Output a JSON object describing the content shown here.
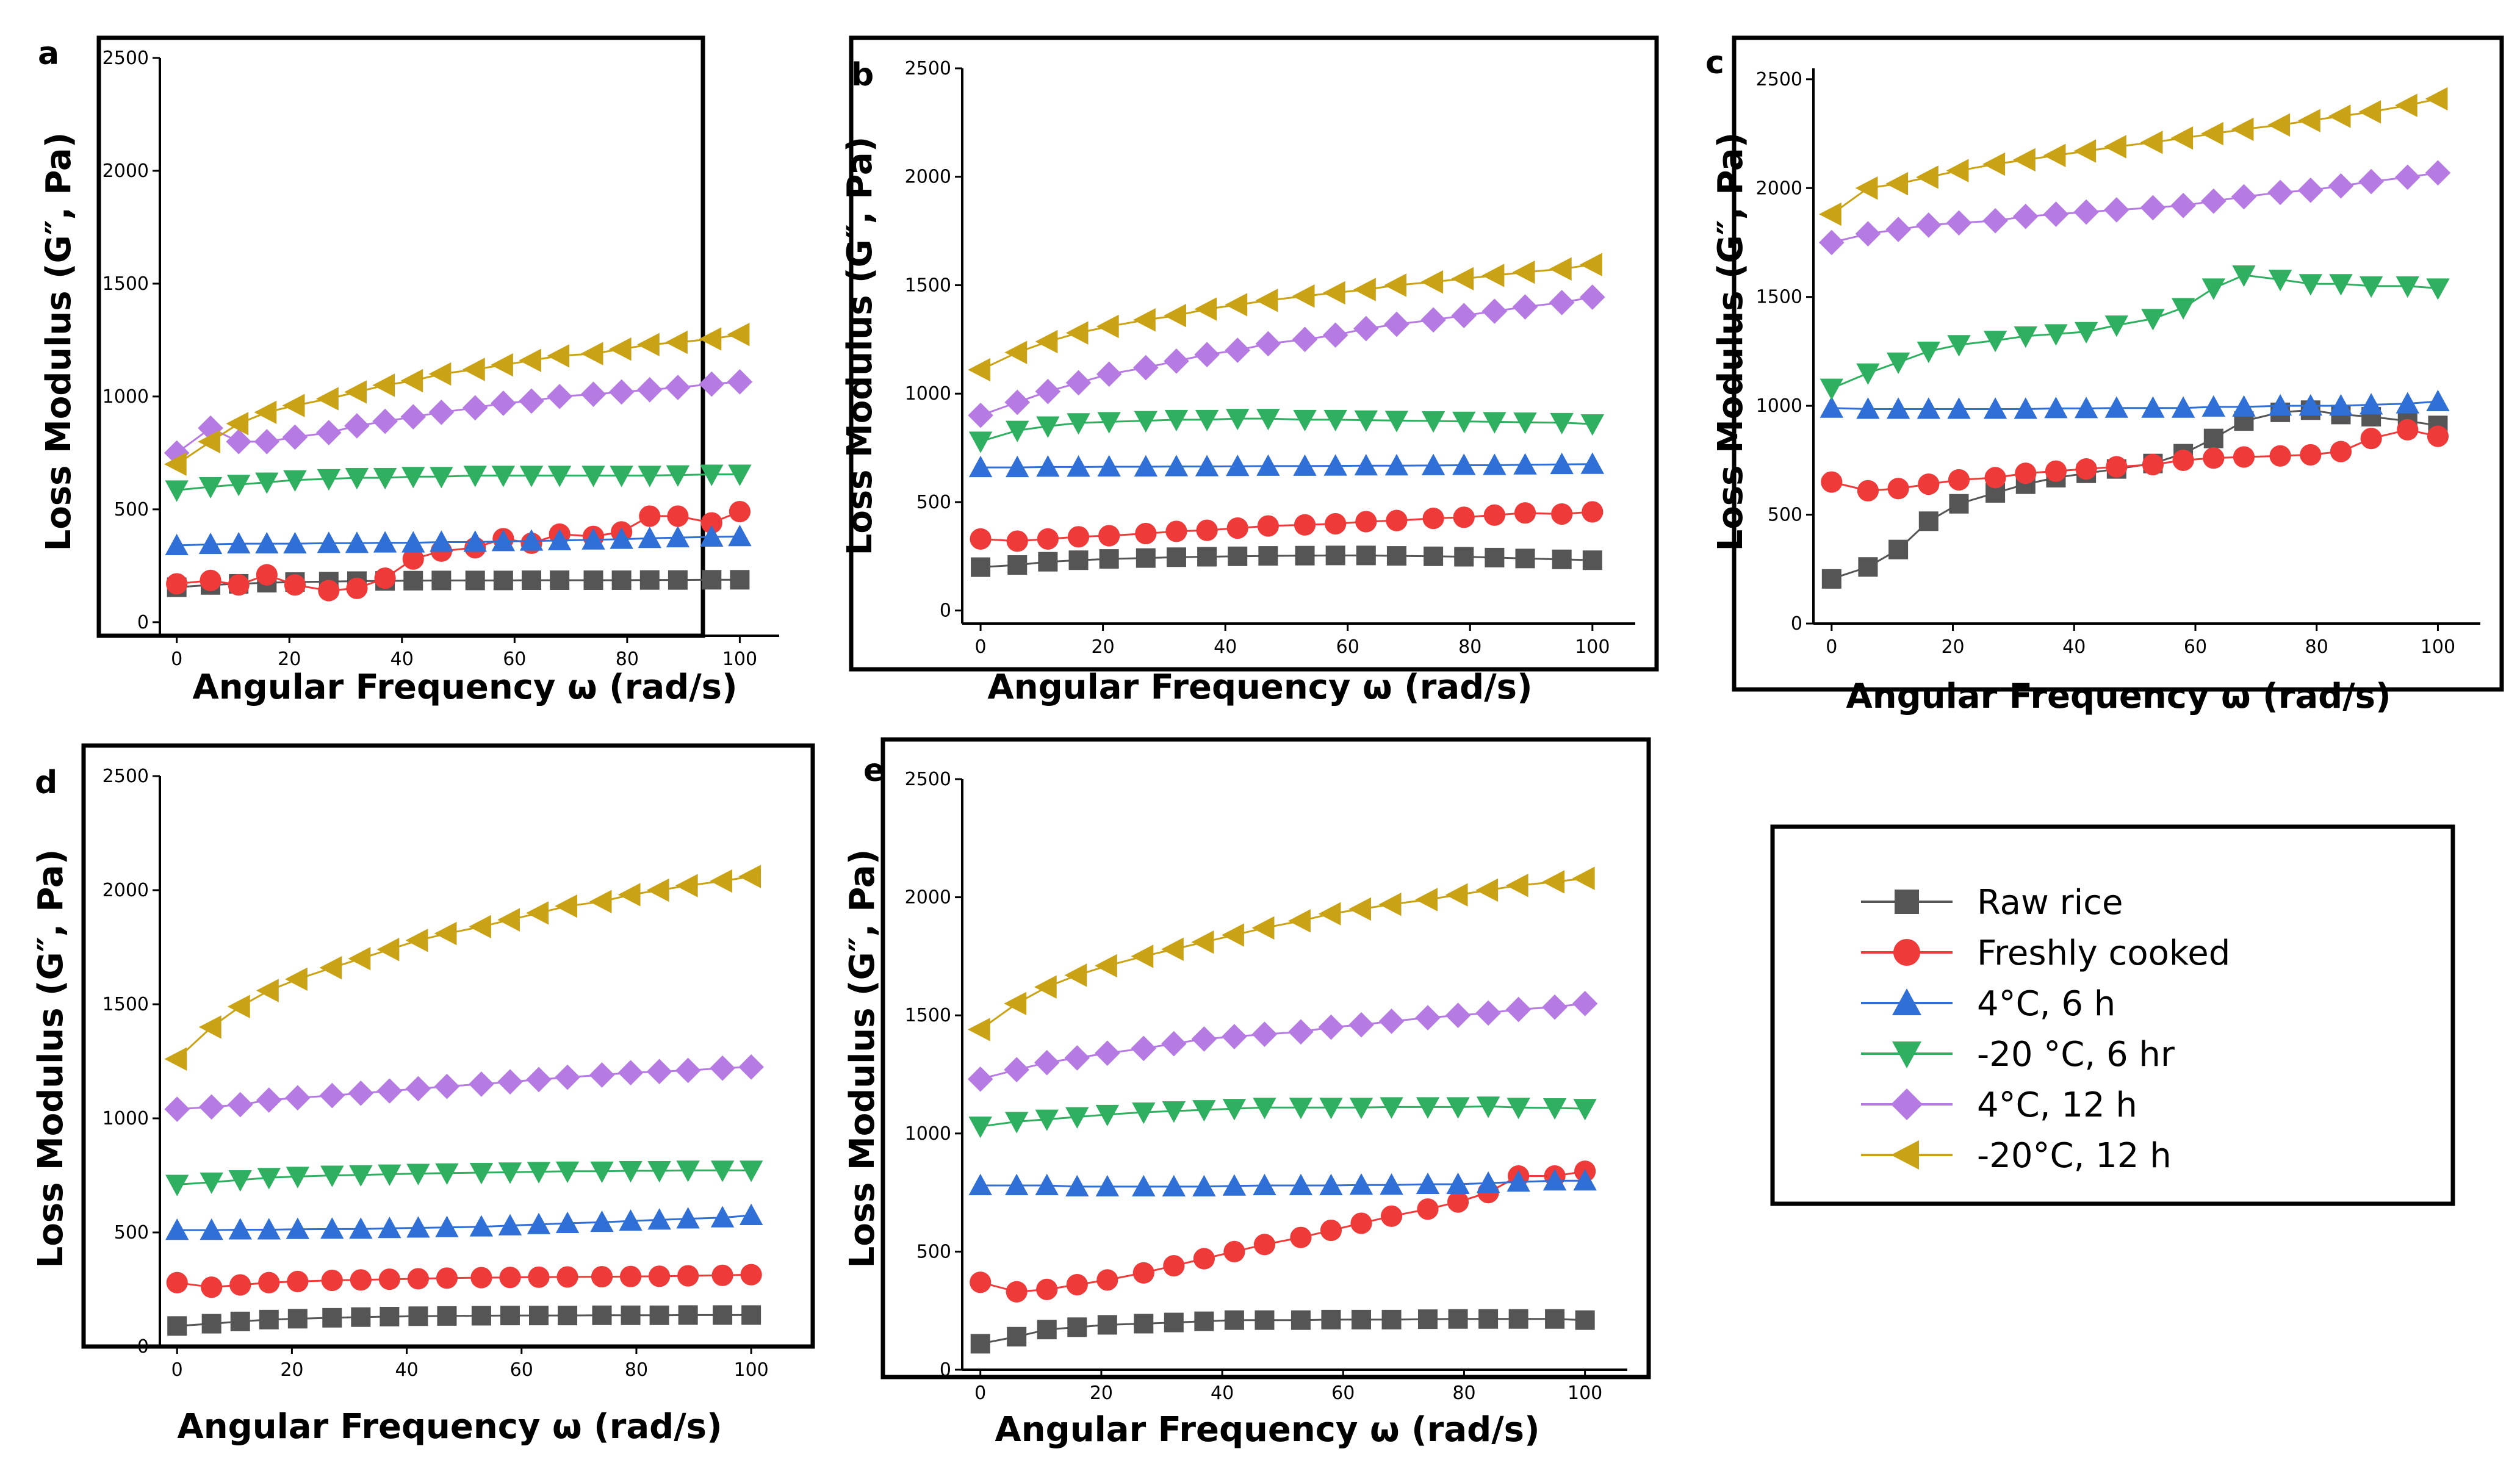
{
  "figure": {
    "legend_entries": [
      {
        "label": "Raw rice",
        "color": "#555555",
        "marker": "square"
      },
      {
        "label": "Freshly cooked",
        "color": "#ef3a3a",
        "marker": "circle"
      },
      {
        "label": "4°C, 6 h",
        "color": "#2f6fd6",
        "marker": "triangle-up"
      },
      {
        "label": "-20 °C, 6 hr",
        "color": "#2fb061",
        "marker": "triangle-down"
      },
      {
        "label": "4°C, 12 h",
        "color": "#b57be3",
        "marker": "diamond"
      },
      {
        "label": "-20°C, 12 h",
        "color": "#c9a215",
        "marker": "triangle-left"
      }
    ]
  },
  "chart_data": [
    {
      "panel": "a",
      "type": "line",
      "xlabel": "Angular Frequency ω (rad/s)",
      "ylabel": "Loss Modulus (G″, Pa)",
      "xlim": [
        -3,
        107
      ],
      "ylim": [
        -60,
        2500
      ],
      "xticks": [
        0,
        20,
        40,
        60,
        80,
        100
      ],
      "yticks": [
        0,
        500,
        1000,
        1500,
        2000,
        2500
      ],
      "x": [
        0,
        6,
        11,
        16,
        21,
        27,
        32,
        37,
        42,
        47,
        53,
        58,
        63,
        68,
        74,
        79,
        84,
        89,
        95,
        100
      ],
      "series": [
        {
          "name": "Raw rice",
          "values": [
            155,
            165,
            170,
            175,
            178,
            180,
            182,
            183,
            184,
            185,
            185,
            185,
            186,
            186,
            186,
            186,
            187,
            187,
            188,
            188
          ]
        },
        {
          "name": "Freshly cooked",
          "values": [
            170,
            185,
            165,
            210,
            165,
            140,
            150,
            195,
            280,
            315,
            330,
            370,
            350,
            390,
            380,
            400,
            470,
            470,
            440,
            490
          ]
        },
        {
          "name": "4°C, 6 h",
          "values": [
            340,
            345,
            348,
            348,
            348,
            350,
            350,
            352,
            352,
            355,
            355,
            358,
            360,
            362,
            365,
            368,
            372,
            375,
            378,
            380
          ]
        },
        {
          "name": "-20 °C, 6 hr",
          "values": [
            585,
            600,
            610,
            620,
            630,
            635,
            640,
            640,
            645,
            645,
            650,
            650,
            650,
            650,
            650,
            650,
            650,
            652,
            655,
            655
          ]
        },
        {
          "name": "4°C, 12 h",
          "values": [
            750,
            860,
            800,
            800,
            820,
            840,
            870,
            890,
            910,
            930,
            950,
            970,
            980,
            1000,
            1010,
            1020,
            1030,
            1040,
            1055,
            1065
          ]
        },
        {
          "name": "-20°C, 12 h",
          "values": [
            700,
            800,
            880,
            930,
            960,
            990,
            1020,
            1050,
            1070,
            1100,
            1120,
            1140,
            1160,
            1180,
            1190,
            1210,
            1230,
            1240,
            1255,
            1275
          ]
        }
      ]
    },
    {
      "panel": "b",
      "type": "line",
      "xlabel": "Angular Frequency ω (rad/s)",
      "ylabel": "Loss Modulus (G″, Pa)",
      "xlim": [
        -3,
        107
      ],
      "ylim": [
        -60,
        2500
      ],
      "xticks": [
        0,
        20,
        40,
        60,
        80,
        100
      ],
      "yticks": [
        0,
        500,
        1000,
        1500,
        2000,
        2500
      ],
      "x": [
        0,
        6,
        11,
        16,
        21,
        27,
        32,
        37,
        42,
        47,
        53,
        58,
        63,
        68,
        74,
        79,
        84,
        89,
        95,
        100
      ],
      "series": [
        {
          "name": "Raw rice",
          "values": [
            200,
            210,
            225,
            232,
            238,
            242,
            246,
            248,
            250,
            252,
            253,
            254,
            254,
            252,
            250,
            248,
            244,
            240,
            236,
            232
          ]
        },
        {
          "name": "Freshly cooked",
          "values": [
            330,
            320,
            330,
            340,
            345,
            355,
            365,
            370,
            380,
            390,
            395,
            400,
            410,
            415,
            425,
            430,
            440,
            450,
            445,
            455
          ]
        },
        {
          "name": "4°C, 6 h",
          "values": [
            660,
            660,
            662,
            662,
            663,
            663,
            664,
            664,
            665,
            666,
            666,
            667,
            668,
            668,
            669,
            670,
            670,
            672,
            674,
            675
          ]
        },
        {
          "name": "-20 °C, 6 hr",
          "values": [
            780,
            830,
            850,
            865,
            870,
            875,
            880,
            880,
            885,
            885,
            880,
            880,
            878,
            876,
            874,
            872,
            870,
            868,
            866,
            860
          ]
        },
        {
          "name": "4°C, 12 h",
          "values": [
            900,
            960,
            1010,
            1050,
            1090,
            1120,
            1150,
            1180,
            1200,
            1230,
            1250,
            1270,
            1300,
            1320,
            1340,
            1360,
            1380,
            1400,
            1420,
            1445
          ]
        },
        {
          "name": "-20°C, 12 h",
          "values": [
            1110,
            1190,
            1240,
            1280,
            1310,
            1340,
            1360,
            1390,
            1410,
            1430,
            1450,
            1465,
            1480,
            1500,
            1515,
            1530,
            1545,
            1560,
            1575,
            1595
          ]
        }
      ]
    },
    {
      "panel": "c",
      "type": "line",
      "xlabel": "Angular Frequency ω (rad/s)",
      "ylabel": "Loss Modulus (G″, Pa)",
      "xlim": [
        -3,
        107
      ],
      "ylim": [
        0,
        2550
      ],
      "xticks": [
        0,
        20,
        40,
        60,
        80,
        100
      ],
      "yticks": [
        0,
        500,
        1000,
        1500,
        2000,
        2500
      ],
      "x": [
        0,
        6,
        11,
        16,
        21,
        27,
        32,
        37,
        42,
        47,
        53,
        58,
        63,
        68,
        74,
        79,
        84,
        89,
        95,
        100
      ],
      "series": [
        {
          "name": "Raw rice",
          "values": [
            205,
            260,
            340,
            470,
            550,
            600,
            640,
            670,
            690,
            710,
            735,
            780,
            850,
            930,
            970,
            980,
            960,
            950,
            930,
            910
          ]
        },
        {
          "name": "Freshly cooked",
          "values": [
            650,
            610,
            620,
            640,
            660,
            670,
            690,
            700,
            710,
            720,
            730,
            750,
            760,
            765,
            770,
            775,
            790,
            850,
            890,
            860
          ]
        },
        {
          "name": "4°C, 6 h",
          "values": [
            990,
            985,
            985,
            985,
            985,
            985,
            985,
            988,
            988,
            990,
            990,
            990,
            995,
            995,
            1000,
            1000,
            1000,
            1005,
            1010,
            1020
          ]
        },
        {
          "name": "-20 °C, 6 hr",
          "values": [
            1080,
            1150,
            1200,
            1250,
            1280,
            1300,
            1320,
            1330,
            1340,
            1370,
            1400,
            1450,
            1540,
            1600,
            1580,
            1560,
            1560,
            1550,
            1550,
            1540
          ]
        },
        {
          "name": "4°C, 12 h",
          "values": [
            1750,
            1790,
            1810,
            1830,
            1840,
            1850,
            1870,
            1880,
            1890,
            1900,
            1910,
            1920,
            1940,
            1960,
            1980,
            1990,
            2010,
            2030,
            2050,
            2070
          ]
        },
        {
          "name": "-20°C, 12 h",
          "values": [
            1880,
            2000,
            2020,
            2050,
            2080,
            2110,
            2130,
            2150,
            2170,
            2190,
            2210,
            2230,
            2250,
            2270,
            2290,
            2310,
            2330,
            2350,
            2380,
            2410
          ]
        }
      ]
    },
    {
      "panel": "d",
      "type": "line",
      "xlabel": "Angular Frequency ω (rad/s)",
      "ylabel": "Loss Modulus (G″, Pa)",
      "xlim": [
        -3,
        107
      ],
      "ylim": [
        0,
        2500
      ],
      "xticks": [
        0,
        20,
        40,
        60,
        80,
        100
      ],
      "yticks": [
        0,
        500,
        1000,
        1500,
        2000,
        2500
      ],
      "x": [
        0,
        6,
        11,
        16,
        21,
        27,
        32,
        37,
        42,
        47,
        53,
        58,
        63,
        68,
        74,
        79,
        84,
        89,
        95,
        100
      ],
      "series": [
        {
          "name": "Raw rice",
          "values": [
            90,
            100,
            110,
            118,
            122,
            126,
            129,
            131,
            133,
            134,
            135,
            136,
            136,
            136,
            137,
            137,
            137,
            138,
            138,
            138
          ]
        },
        {
          "name": "Freshly cooked",
          "values": [
            280,
            260,
            270,
            280,
            285,
            290,
            292,
            295,
            297,
            300,
            302,
            303,
            304,
            305,
            306,
            307,
            308,
            310,
            312,
            315
          ]
        },
        {
          "name": "4°C, 6 h",
          "values": [
            510,
            510,
            512,
            512,
            514,
            515,
            515,
            518,
            520,
            522,
            525,
            530,
            535,
            540,
            545,
            550,
            555,
            560,
            565,
            575
          ]
        },
        {
          "name": "-20 °C, 6 hr",
          "values": [
            710,
            720,
            730,
            740,
            745,
            750,
            752,
            755,
            758,
            760,
            762,
            764,
            766,
            768,
            768,
            770,
            770,
            772,
            772,
            772
          ]
        },
        {
          "name": "4°C, 12 h",
          "values": [
            1040,
            1050,
            1060,
            1080,
            1090,
            1100,
            1110,
            1120,
            1130,
            1140,
            1150,
            1160,
            1170,
            1180,
            1190,
            1200,
            1205,
            1210,
            1220,
            1225
          ]
        },
        {
          "name": "-20°C, 12 h",
          "values": [
            1260,
            1400,
            1490,
            1560,
            1610,
            1660,
            1700,
            1740,
            1780,
            1810,
            1840,
            1870,
            1900,
            1930,
            1950,
            1980,
            2000,
            2020,
            2040,
            2060
          ]
        }
      ]
    },
    {
      "panel": "e",
      "type": "line",
      "xlabel": "Angular Frequency ω (rad/s)",
      "ylabel": "Loss Modulus (G″, Pa)",
      "xlim": [
        -3,
        107
      ],
      "ylim": [
        0,
        2500
      ],
      "xticks": [
        0,
        20,
        40,
        60,
        80,
        100
      ],
      "yticks": [
        0,
        500,
        1000,
        1500,
        2000,
        2500
      ],
      "x": [
        0,
        6,
        11,
        16,
        21,
        27,
        32,
        37,
        42,
        47,
        53,
        58,
        63,
        68,
        74,
        79,
        84,
        89,
        95,
        100
      ],
      "series": [
        {
          "name": "Raw rice",
          "values": [
            110,
            140,
            170,
            180,
            190,
            195,
            200,
            205,
            210,
            210,
            210,
            212,
            212,
            212,
            214,
            215,
            215,
            215,
            215,
            210
          ]
        },
        {
          "name": "Freshly cooked",
          "values": [
            370,
            330,
            340,
            360,
            380,
            410,
            440,
            470,
            500,
            530,
            560,
            590,
            620,
            650,
            680,
            710,
            750,
            820,
            820,
            840
          ]
        },
        {
          "name": "4°C, 6 h",
          "values": [
            780,
            780,
            780,
            775,
            775,
            775,
            775,
            775,
            778,
            780,
            780,
            780,
            782,
            782,
            785,
            785,
            790,
            795,
            800,
            800
          ]
        },
        {
          "name": "-20 °C, 6 hr",
          "values": [
            1030,
            1050,
            1060,
            1070,
            1080,
            1090,
            1095,
            1100,
            1105,
            1110,
            1110,
            1110,
            1110,
            1112,
            1112,
            1112,
            1115,
            1110,
            1108,
            1105
          ]
        },
        {
          "name": "4°C, 12 h",
          "values": [
            1230,
            1270,
            1300,
            1320,
            1340,
            1360,
            1380,
            1400,
            1410,
            1420,
            1430,
            1450,
            1460,
            1475,
            1490,
            1500,
            1510,
            1525,
            1535,
            1550
          ]
        },
        {
          "name": "-20°C, 12 h",
          "values": [
            1440,
            1550,
            1620,
            1670,
            1710,
            1750,
            1780,
            1810,
            1840,
            1870,
            1900,
            1930,
            1950,
            1970,
            1990,
            2010,
            2030,
            2050,
            2065,
            2080
          ]
        }
      ]
    }
  ]
}
